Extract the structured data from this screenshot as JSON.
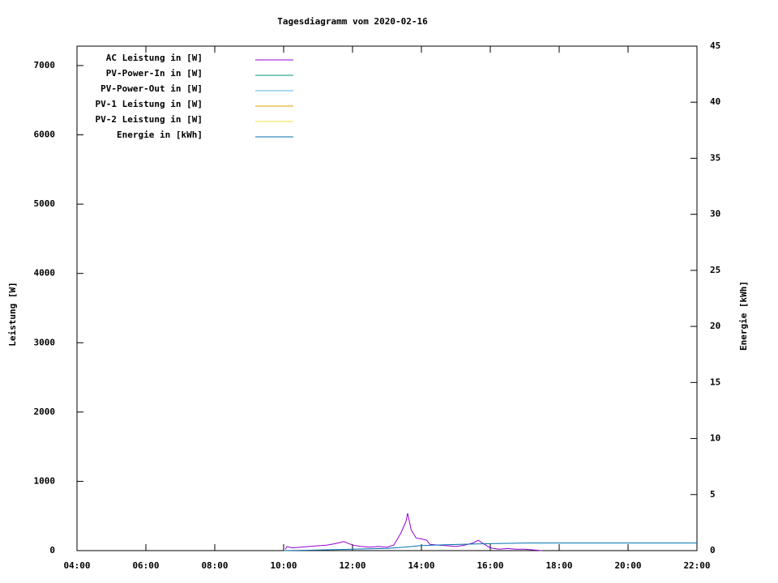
{
  "chart_data": {
    "type": "line",
    "title": "Tagesdiagramm vom 2020-02-16",
    "y_label": "Leistung [W]",
    "y2_label": "Energie [kWh]",
    "xlim": [
      4,
      22
    ],
    "xticks": [
      {
        "value": 4,
        "label": "04:00"
      },
      {
        "value": 6,
        "label": "06:00"
      },
      {
        "value": 8,
        "label": "08:00"
      },
      {
        "value": 10,
        "label": "10:00"
      },
      {
        "value": 12,
        "label": "12:00"
      },
      {
        "value": 14,
        "label": "14:00"
      },
      {
        "value": 16,
        "label": "16:00"
      },
      {
        "value": 18,
        "label": "18:00"
      },
      {
        "value": 20,
        "label": "20:00"
      },
      {
        "value": 22,
        "label": "22:00"
      }
    ],
    "ylim": [
      0,
      7280
    ],
    "yticks": [
      0,
      1000,
      2000,
      3000,
      4000,
      5000,
      6000,
      7000
    ],
    "y2lim": [
      0,
      45
    ],
    "y2ticks": [
      0,
      5,
      10,
      15,
      20,
      25,
      30,
      35,
      40,
      45
    ],
    "legend": "top-left",
    "series": [
      {
        "name": "AC Leistung in [W]",
        "color": "#9400d3",
        "x": [
          10.05,
          10.1,
          10.25,
          10.5,
          10.75,
          11.0,
          11.25,
          11.5,
          11.75,
          12.0,
          12.25,
          12.5,
          12.75,
          13.0,
          13.2,
          13.4,
          13.55,
          13.6,
          13.7,
          13.85,
          14.0,
          14.15,
          14.25,
          14.5,
          14.75,
          15.0,
          15.25,
          15.5,
          15.65,
          15.8,
          16.0,
          16.25,
          16.5,
          16.75,
          17.0,
          17.25,
          17.5
        ],
        "values": [
          20,
          60,
          40,
          50,
          60,
          70,
          80,
          100,
          130,
          80,
          60,
          50,
          60,
          50,
          80,
          250,
          420,
          540,
          300,
          180,
          170,
          150,
          90,
          80,
          70,
          60,
          80,
          110,
          150,
          100,
          40,
          20,
          30,
          20,
          20,
          10,
          0
        ]
      },
      {
        "name": "PV-Power-In in [W]",
        "color": "#009e73",
        "x": [],
        "values": []
      },
      {
        "name": "PV-Power-Out in [W]",
        "color": "#56b4e9",
        "x": [],
        "values": []
      },
      {
        "name": "PV-1 Leistung in [W]",
        "color": "#e69f00",
        "x": [],
        "values": []
      },
      {
        "name": "PV-2 Leistung in [W]",
        "color": "#f0e442",
        "x": [],
        "values": []
      },
      {
        "name": "Energie in [kWh]",
        "color": "#0072b2",
        "axis": "y2",
        "x": [
          10.0,
          11.0,
          12.0,
          13.0,
          13.5,
          14.0,
          15.0,
          16.0,
          16.5,
          17.0,
          22.0
        ],
        "values": [
          0,
          0.05,
          0.12,
          0.2,
          0.3,
          0.45,
          0.55,
          0.62,
          0.65,
          0.68,
          0.68
        ]
      }
    ]
  }
}
